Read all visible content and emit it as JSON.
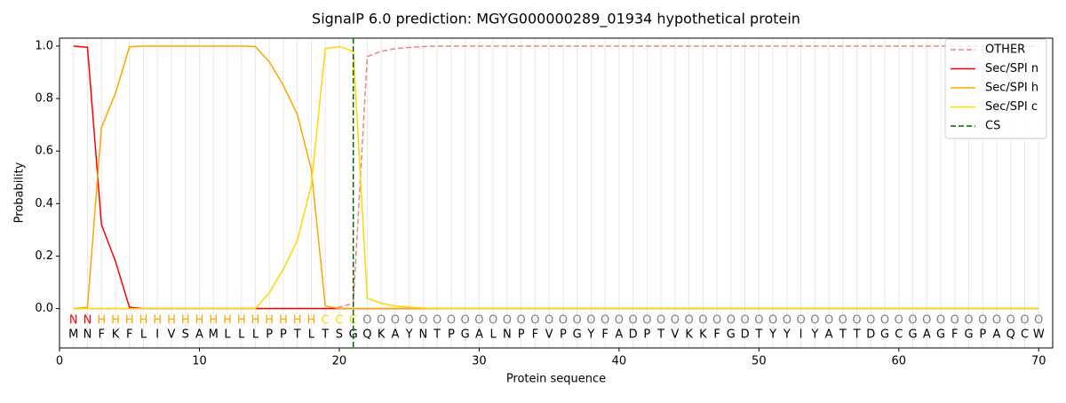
{
  "chart_data": {
    "type": "line",
    "title": "SignalP 6.0 prediction: MGYG000000289_01934 hypothetical protein",
    "x_label": "Protein sequence",
    "y_label": "Probability",
    "x": [
      1,
      2,
      3,
      4,
      5,
      6,
      7,
      8,
      9,
      10,
      11,
      12,
      13,
      14,
      15,
      16,
      17,
      18,
      19,
      20,
      21,
      22,
      23,
      24,
      25,
      26,
      27,
      28,
      29,
      30,
      31,
      32,
      33,
      34,
      35,
      36,
      37,
      38,
      39,
      40,
      41,
      42,
      43,
      44,
      45,
      46,
      47,
      48,
      49,
      50,
      51,
      52,
      53,
      54,
      55,
      56,
      57,
      58,
      59,
      60,
      61,
      62,
      63,
      64,
      65,
      66,
      67,
      68,
      69,
      70
    ],
    "sequence": [
      "M",
      "N",
      "F",
      "K",
      "F",
      "L",
      "I",
      "V",
      "S",
      "A",
      "M",
      "L",
      "L",
      "L",
      "P",
      "P",
      "T",
      "L",
      "T",
      "S",
      "G",
      "Q",
      "K",
      "A",
      "Y",
      "N",
      "T",
      "P",
      "G",
      "A",
      "L",
      "N",
      "P",
      "F",
      "V",
      "P",
      "G",
      "Y",
      "F",
      "A",
      "D",
      "P",
      "T",
      "V",
      "K",
      "K",
      "F",
      "G",
      "D",
      "T",
      "Y",
      "Y",
      "I",
      "Y",
      "A",
      "T",
      "T",
      "D",
      "G",
      "C",
      "G",
      "A",
      "G",
      "F",
      "G",
      "P",
      "A",
      "Q",
      "C",
      "W"
    ],
    "regions": [
      "N",
      "N",
      "H",
      "H",
      "H",
      "H",
      "H",
      "H",
      "H",
      "H",
      "H",
      "H",
      "H",
      "H",
      "H",
      "H",
      "H",
      "H",
      "C",
      "C",
      "C",
      "O",
      "O",
      "O",
      "O",
      "O",
      "O",
      "O",
      "O",
      "O",
      "O",
      "O",
      "O",
      "O",
      "O",
      "O",
      "O",
      "O",
      "O",
      "O",
      "O",
      "O",
      "O",
      "O",
      "O",
      "O",
      "O",
      "O",
      "O",
      "O",
      "O",
      "O",
      "O",
      "O",
      "O",
      "O",
      "O",
      "O",
      "O",
      "O",
      "O",
      "O",
      "O",
      "O",
      "O",
      "O",
      "O",
      "O",
      "O",
      "O"
    ],
    "region_colors": {
      "N": "#ff0000",
      "H": "#ffa500",
      "C": "#ffd700",
      "O": "#808080"
    },
    "series": [
      {
        "name": "OTHER",
        "color": "#f08080",
        "dashed": true,
        "values": [
          0,
          0,
          0,
          0,
          0,
          0,
          0,
          0,
          0,
          0,
          0,
          0,
          0,
          0,
          0,
          0,
          0,
          0,
          0,
          0.005,
          0.02,
          0.96,
          0.98,
          0.99,
          0.995,
          0.998,
          1,
          1,
          1,
          1,
          1,
          1,
          1,
          1,
          1,
          1,
          1,
          1,
          1,
          1,
          1,
          1,
          1,
          1,
          1,
          1,
          1,
          1,
          1,
          1,
          1,
          1,
          1,
          1,
          1,
          1,
          1,
          1,
          1,
          1,
          1,
          1,
          1,
          1,
          1,
          1,
          1,
          1,
          1,
          1
        ]
      },
      {
        "name": "Sec/SPI n",
        "color": "#ff0000",
        "values": [
          1,
          0.995,
          0.32,
          0.18,
          0.005,
          0,
          0,
          0,
          0,
          0,
          0,
          0,
          0,
          0,
          0,
          0,
          0,
          0,
          0,
          0,
          0,
          0,
          0,
          0,
          0,
          0,
          0,
          0,
          0,
          0,
          0,
          0,
          0,
          0,
          0,
          0,
          0,
          0,
          0,
          0,
          0,
          0,
          0,
          0,
          0,
          0,
          0,
          0,
          0,
          0,
          0,
          0,
          0,
          0,
          0,
          0,
          0,
          0,
          0,
          0,
          0,
          0,
          0,
          0,
          0,
          0,
          0,
          0,
          0,
          0
        ]
      },
      {
        "name": "Sec/SPI h",
        "color": "#ffa500",
        "values": [
          0,
          0.005,
          0.69,
          0.82,
          0.997,
          1,
          1,
          1,
          1,
          1,
          1,
          1,
          1,
          0.998,
          0.94,
          0.85,
          0.74,
          0.53,
          0.01,
          0,
          0,
          0,
          0,
          0,
          0,
          0,
          0,
          0,
          0,
          0,
          0,
          0,
          0,
          0,
          0,
          0,
          0,
          0,
          0,
          0,
          0,
          0,
          0,
          0,
          0,
          0,
          0,
          0,
          0,
          0,
          0,
          0,
          0,
          0,
          0,
          0,
          0,
          0,
          0,
          0,
          0,
          0,
          0,
          0,
          0,
          0,
          0,
          0,
          0,
          0
        ]
      },
      {
        "name": "Sec/SPI c",
        "color": "#ffd700",
        "values": [
          0,
          0,
          0,
          0,
          0,
          0,
          0,
          0,
          0,
          0,
          0,
          0,
          0,
          0,
          0.06,
          0.15,
          0.26,
          0.47,
          0.99,
          0.998,
          0.98,
          0.04,
          0.02,
          0.01,
          0.005,
          0.002,
          0,
          0,
          0,
          0,
          0,
          0,
          0,
          0,
          0,
          0,
          0,
          0,
          0,
          0,
          0,
          0,
          0,
          0,
          0,
          0,
          0,
          0,
          0,
          0,
          0,
          0,
          0,
          0,
          0,
          0,
          0,
          0,
          0,
          0,
          0,
          0,
          0,
          0,
          0,
          0,
          0,
          0,
          0,
          0
        ]
      }
    ],
    "cleavage_site": {
      "name": "CS",
      "color": "#006400",
      "x": 21
    },
    "xlim": [
      0,
      71
    ],
    "ylim": [
      -0.15,
      1.03
    ],
    "xticks": [
      0,
      10,
      20,
      30,
      40,
      50,
      60,
      70
    ],
    "yticks": [
      {
        "value": 0,
        "label": "0.0"
      },
      {
        "value": 0.2,
        "label": "0.2"
      },
      {
        "value": 0.4,
        "label": "0.4"
      },
      {
        "value": 0.6,
        "label": "0.6"
      },
      {
        "value": 0.8,
        "label": "0.8"
      },
      {
        "value": 1,
        "label": "1.0"
      }
    ],
    "grid": true,
    "legend": "upper right"
  }
}
